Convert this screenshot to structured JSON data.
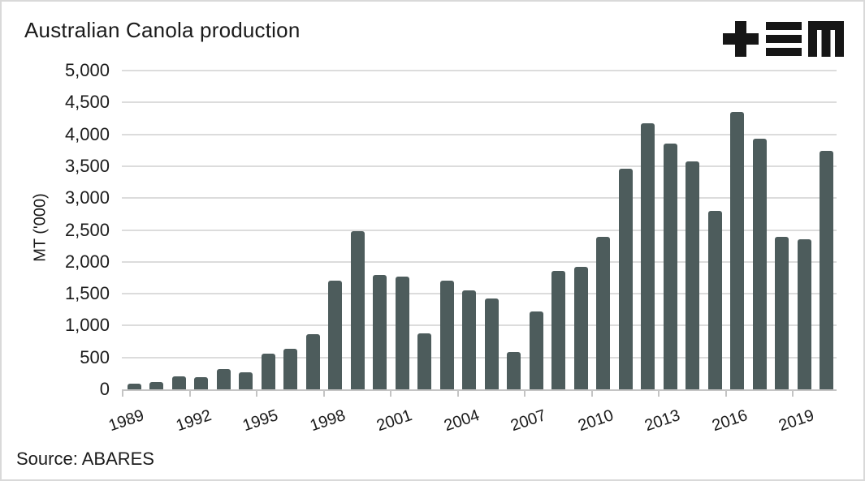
{
  "header": {
    "title": "Australian Canola production",
    "logo": {
      "name": "TEM logo",
      "glyphs": [
        "plus",
        "triple-bar",
        "m"
      ],
      "color": "#161616"
    }
  },
  "source": {
    "label": "Source: ABARES"
  },
  "colors": {
    "bar": "#4d5c5c",
    "gridline": "#dcdcdc",
    "axis_line": "#c4c4c4",
    "text": "#1b1b1b"
  },
  "chart_data": {
    "type": "bar",
    "title": "Australian Canola production",
    "xlabel": "",
    "ylabel": "MT ('000)",
    "ylim": [
      0,
      5000
    ],
    "ytick_step": 500,
    "grid": true,
    "legend": false,
    "xtick_labels": [
      "1989",
      "1992",
      "1995",
      "1998",
      "2001",
      "2004",
      "2007",
      "2010",
      "2013",
      "2016",
      "2019"
    ],
    "categories": [
      1989,
      1990,
      1991,
      1992,
      1993,
      1994,
      1995,
      1996,
      1997,
      1998,
      1999,
      2000,
      2001,
      2002,
      2003,
      2004,
      2005,
      2006,
      2007,
      2008,
      2009,
      2010,
      2011,
      2012,
      2013,
      2014,
      2015,
      2016,
      2017,
      2018,
      2019,
      2020
    ],
    "values": [
      95,
      115,
      200,
      190,
      320,
      270,
      565,
      640,
      860,
      1710,
      2480,
      1800,
      1770,
      880,
      1710,
      1550,
      1430,
      590,
      1220,
      1860,
      1920,
      2390,
      3460,
      4170,
      3860,
      3570,
      2800,
      4350,
      3925,
      2395,
      2355,
      3735
    ],
    "bar_color": "#4d5c5c"
  }
}
